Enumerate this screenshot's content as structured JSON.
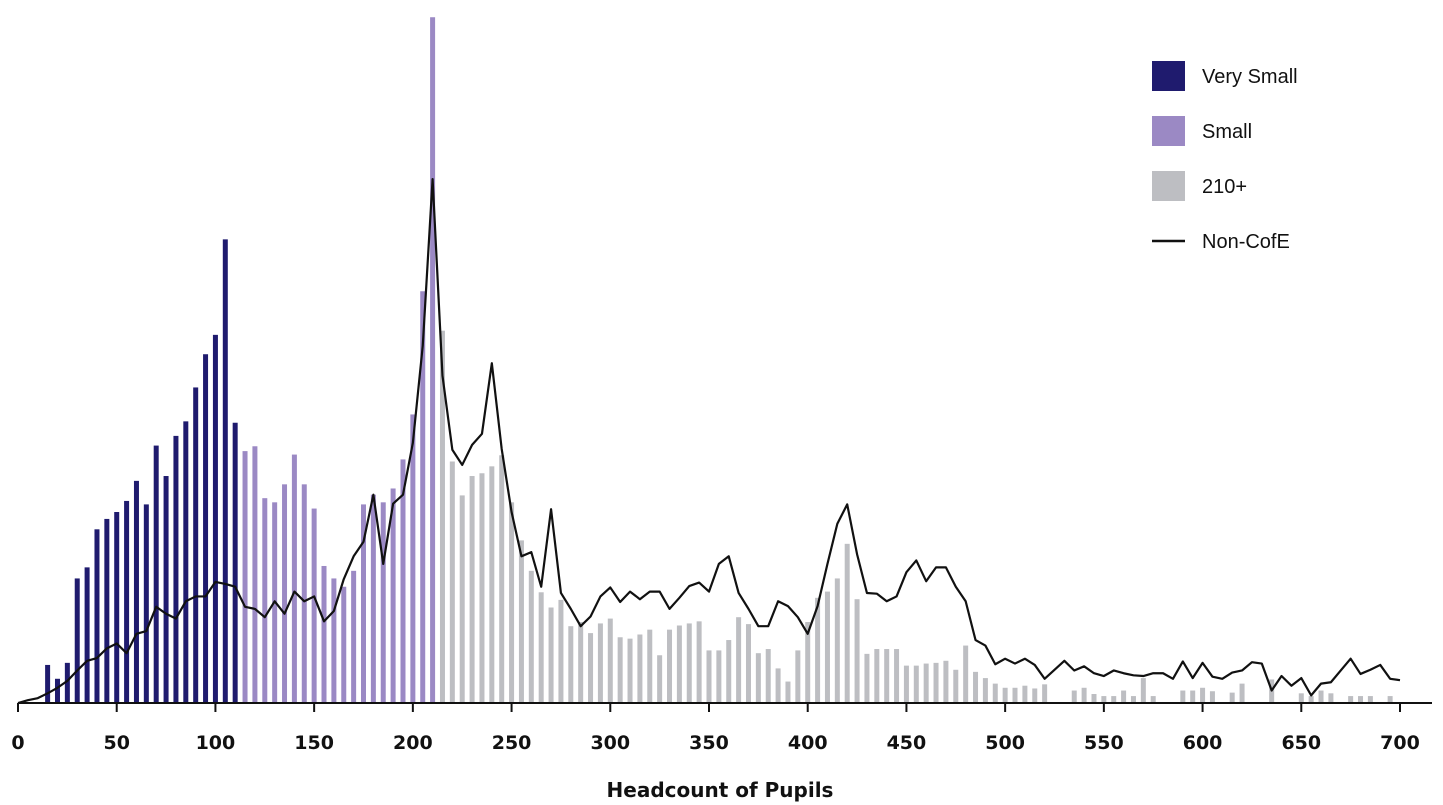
{
  "chart_data": {
    "type": "bar",
    "xlabel": "Headcount of Pupils",
    "xlim": [
      0,
      700
    ],
    "xticks": [
      0,
      50,
      100,
      150,
      200,
      250,
      300,
      350,
      400,
      450,
      500,
      550,
      600,
      650,
      700
    ],
    "ylim": [
      0,
      100
    ],
    "grid": false,
    "legend_position": "top-right",
    "legend": [
      {
        "name": "Very Small",
        "kind": "box",
        "color": "#1f1b6e"
      },
      {
        "name": "Small",
        "kind": "box",
        "color": "#9b89c4"
      },
      {
        "name": "210+",
        "kind": "box",
        "color": "#bdbec2"
      },
      {
        "name": "Non-CofE",
        "kind": "line",
        "color": "#111111"
      }
    ],
    "bar_series": [
      {
        "name": "Very Small",
        "color": "#1f1b6e",
        "x": [
          15,
          20,
          25,
          30,
          35,
          40,
          45,
          50,
          55,
          60,
          65,
          70,
          75,
          80,
          85,
          90,
          95,
          100,
          105,
          110
        ],
        "values": [
          5.5,
          3.5,
          5.8,
          18,
          19.6,
          25.1,
          26.6,
          27.6,
          29.2,
          32.1,
          28.7,
          37.2,
          32.8,
          38.6,
          40.7,
          45.6,
          50.4,
          53.2,
          67.0,
          40.5
        ]
      },
      {
        "name": "Small",
        "color": "#9b89c4",
        "x": [
          115,
          120,
          125,
          130,
          135,
          140,
          145,
          150,
          155,
          160,
          165,
          170,
          175,
          180,
          185,
          190,
          195,
          200,
          205,
          210
        ],
        "values": [
          36.4,
          37.1,
          29.6,
          29.0,
          31.6,
          35.9,
          31.6,
          28.1,
          19.8,
          18.0,
          16.8,
          19.1,
          28.7,
          30.1,
          29.0,
          31.0,
          35.2,
          41.7,
          59.5,
          99.1
        ]
      },
      {
        "name": "210+",
        "color": "#bdbec2",
        "x": [
          215,
          220,
          225,
          230,
          235,
          240,
          245,
          250,
          255,
          260,
          265,
          270,
          275,
          280,
          285,
          290,
          295,
          300,
          305,
          310,
          315,
          320,
          325,
          330,
          335,
          340,
          345,
          350,
          355,
          360,
          365,
          370,
          375,
          380,
          385,
          390,
          395,
          400,
          405,
          410,
          415,
          420,
          425,
          430,
          435,
          440,
          445,
          450,
          455,
          460,
          465,
          470,
          475,
          480,
          485,
          490,
          495,
          500,
          505,
          510,
          515,
          520,
          525,
          530,
          535,
          540,
          545,
          550,
          555,
          560,
          565,
          570,
          575,
          580,
          585,
          590,
          595,
          600,
          605,
          610,
          615,
          620,
          625,
          630,
          635,
          640,
          645,
          650,
          655,
          660,
          665,
          670,
          675,
          680,
          685,
          690,
          695
        ],
        "values": [
          53.8,
          34.9,
          30.0,
          32.8,
          33.2,
          34.2,
          35.8,
          29.0,
          23.5,
          19.1,
          16.0,
          13.8,
          14.9,
          11.1,
          11.7,
          10.1,
          11.5,
          12.2,
          9.5,
          9.3,
          9.9,
          10.6,
          6.9,
          10.6,
          11.2,
          11.5,
          11.8,
          7.6,
          7.6,
          9.1,
          12.4,
          11.4,
          7.2,
          7.8,
          5.0,
          3.1,
          7.6,
          11.7,
          15.2,
          16.1,
          18.0,
          23.0,
          15.0,
          7.1,
          7.8,
          7.8,
          7.8,
          5.4,
          5.4,
          5.7,
          5.8,
          6.1,
          4.8,
          8.3,
          4.5,
          3.6,
          2.8,
          2.2,
          2.2,
          2.5,
          2.1,
          2.7,
          0,
          0,
          1.8,
          2.2,
          1.3,
          1.0,
          1.0,
          1.8,
          1.0,
          3.6,
          1.0,
          0,
          0,
          1.8,
          1.8,
          2.2,
          1.7,
          0,
          1.5,
          2.8,
          0,
          0,
          3.4,
          0,
          0,
          1.4,
          1.0,
          1.8,
          1.4,
          0,
          1.0,
          1.0,
          1.0,
          0,
          1.0
        ]
      }
    ],
    "line_series": {
      "name": "Non-CofE",
      "color": "#111111",
      "x": [
        0,
        5,
        10,
        15,
        20,
        25,
        30,
        35,
        40,
        45,
        50,
        55,
        60,
        65,
        70,
        75,
        80,
        85,
        90,
        95,
        100,
        105,
        110,
        115,
        120,
        125,
        130,
        135,
        140,
        145,
        150,
        155,
        160,
        165,
        170,
        175,
        180,
        185,
        190,
        195,
        200,
        205,
        210,
        215,
        220,
        225,
        230,
        235,
        240,
        245,
        250,
        255,
        260,
        265,
        270,
        275,
        280,
        285,
        290,
        295,
        300,
        305,
        310,
        315,
        320,
        325,
        330,
        335,
        340,
        345,
        350,
        355,
        360,
        365,
        370,
        375,
        380,
        385,
        390,
        395,
        400,
        405,
        410,
        415,
        420,
        425,
        430,
        435,
        440,
        445,
        450,
        455,
        460,
        465,
        470,
        475,
        480,
        485,
        490,
        495,
        500,
        505,
        510,
        515,
        520,
        525,
        530,
        535,
        540,
        545,
        550,
        555,
        560,
        565,
        570,
        575,
        580,
        585,
        590,
        595,
        600,
        605,
        610,
        615,
        620,
        625,
        630,
        635,
        640,
        645,
        650,
        655,
        660,
        665,
        670,
        675,
        680,
        685,
        690,
        695,
        700
      ],
      "values": [
        0,
        0.4,
        0.7,
        1.4,
        2.2,
        3.2,
        4.7,
        6.1,
        6.5,
        7.9,
        8.6,
        7.2,
        10.0,
        10.4,
        13.9,
        12.9,
        12.2,
        14.7,
        15.4,
        15.4,
        17.5,
        17.2,
        16.8,
        13.9,
        13.6,
        12.4,
        14.7,
        12.9,
        16.1,
        14.7,
        15.4,
        11.8,
        13.3,
        17.9,
        21.2,
        23.3,
        30.1,
        20.1,
        28.8,
        30.1,
        37.6,
        51.6,
        75.7,
        47.3,
        36.6,
        34.4,
        37.3,
        38.9,
        49.1,
        36.7,
        27.6,
        21.2,
        21.8,
        16.8,
        28.0,
        15.9,
        13.6,
        11.1,
        12.5,
        15.4,
        16.7,
        14.6,
        16.1,
        15.0,
        16.1,
        16.1,
        13.6,
        15.2,
        16.9,
        17.4,
        16.1,
        20.1,
        21.2,
        15.9,
        13.6,
        11.1,
        11.1,
        14.7,
        14.0,
        12.4,
        10.0,
        14.0,
        20.1,
        25.9,
        28.7,
        21.5,
        15.9,
        15.8,
        14.7,
        15.4,
        18.9,
        20.6,
        17.6,
        19.6,
        19.6,
        16.8,
        14.7,
        9.1,
        8.3,
        5.6,
        6.4,
        5.7,
        6.4,
        5.5,
        3.5,
        4.8,
        6.1,
        4.7,
        5.3,
        4.3,
        3.9,
        4.7,
        4.3,
        4.0,
        3.9,
        4.3,
        4.3,
        3.5,
        6.0,
        3.6,
        5.8,
        3.8,
        3.5,
        4.4,
        4.7,
        5.9,
        5.7,
        1.8,
        3.9,
        2.5,
        3.6,
        1.1,
        2.8,
        3.0,
        4.7,
        6.4,
        4.2,
        4.8,
        5.5,
        3.5,
        3.3
      ]
    }
  }
}
